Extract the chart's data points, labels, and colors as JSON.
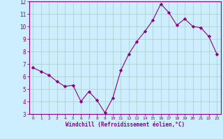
{
  "x": [
    0,
    1,
    2,
    3,
    4,
    5,
    6,
    7,
    8,
    9,
    10,
    11,
    12,
    13,
    14,
    15,
    16,
    17,
    18,
    19,
    20,
    21,
    22,
    23
  ],
  "y": [
    6.7,
    6.4,
    6.1,
    5.6,
    5.2,
    5.3,
    4.0,
    4.8,
    4.1,
    3.1,
    4.3,
    6.5,
    7.8,
    8.8,
    9.6,
    10.5,
    11.8,
    11.1,
    10.1,
    10.6,
    10.0,
    9.9,
    9.2,
    7.8
  ],
  "line_color": "#880088",
  "marker": "D",
  "marker_size": 2.2,
  "bg_color": "#cceeff",
  "grid_color": "#aacccc",
  "xlabel": "Windchill (Refroidissement éolien,°C)",
  "xlim": [
    -0.5,
    23.5
  ],
  "ylim": [
    3,
    12
  ],
  "yticks": [
    3,
    4,
    5,
    6,
    7,
    8,
    9,
    10,
    11,
    12
  ],
  "xticks": [
    0,
    1,
    2,
    3,
    4,
    5,
    6,
    7,
    8,
    9,
    10,
    11,
    12,
    13,
    14,
    15,
    16,
    17,
    18,
    19,
    20,
    21,
    22,
    23
  ],
  "tick_color": "#880088",
  "label_color": "#880088",
  "spine_color": "#880088"
}
